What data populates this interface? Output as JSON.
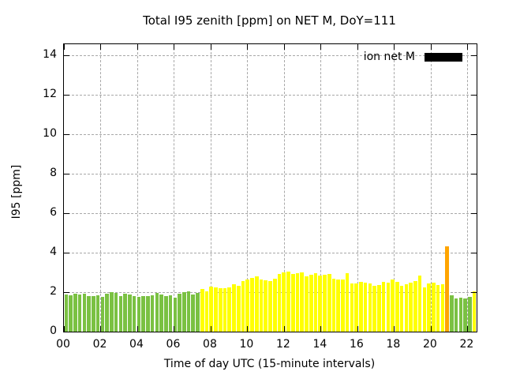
{
  "title": "Total I95 zenith [ppm] on NET M, DoY=111",
  "legend": {
    "label": "ion net M",
    "swatch_color": "#000000"
  },
  "axes": {
    "ylabel": "I95 [ppm]",
    "xlabel": "Time of day UTC (15-minute intervals)",
    "y_ticks": [
      "0",
      "2",
      "4",
      "6",
      "8",
      "10",
      "12",
      "14"
    ],
    "x_ticks": [
      "00",
      "02",
      "04",
      "06",
      "08",
      "10",
      "12",
      "14",
      "16",
      "18",
      "20",
      "22"
    ]
  },
  "colors": {
    "bar_green": "#7ac142",
    "bar_yellow": "#ffff00",
    "bar_orange": "#ffa500",
    "grid": "#a8a8a8",
    "axis": "#000000",
    "background": "#ffffff"
  },
  "chart_data": {
    "type": "bar",
    "title": "Total I95 zenith [ppm] on NET M, DoY=111",
    "xlabel": "Time of day UTC (15-minute intervals)",
    "ylabel": "I95 [ppm]",
    "ylim": [
      0,
      14.5
    ],
    "y_tick_step": 2,
    "x_hours_range": [
      0,
      22.5
    ],
    "x_tick_step_hours": 2,
    "interval_minutes": 15,
    "grid": true,
    "legend": {
      "label": "ion net M",
      "position": "top-right",
      "swatch_color": "#000000"
    },
    "series_colors": {
      "green": "#7ac142",
      "yellow": "#ffff00",
      "orange": "#ffa500"
    },
    "bars": [
      {
        "t": "00:00",
        "v": 1.89,
        "c": "green"
      },
      {
        "t": "00:15",
        "v": 1.85,
        "c": "green"
      },
      {
        "t": "00:30",
        "v": 1.93,
        "c": "green"
      },
      {
        "t": "00:45",
        "v": 1.89,
        "c": "green"
      },
      {
        "t": "01:00",
        "v": 1.93,
        "c": "green"
      },
      {
        "t": "01:15",
        "v": 1.79,
        "c": "green"
      },
      {
        "t": "01:30",
        "v": 1.79,
        "c": "green"
      },
      {
        "t": "01:45",
        "v": 1.83,
        "c": "green"
      },
      {
        "t": "02:00",
        "v": 1.76,
        "c": "green"
      },
      {
        "t": "02:15",
        "v": 1.93,
        "c": "green"
      },
      {
        "t": "02:30",
        "v": 1.99,
        "c": "green"
      },
      {
        "t": "02:45",
        "v": 1.95,
        "c": "green"
      },
      {
        "t": "03:00",
        "v": 1.81,
        "c": "green"
      },
      {
        "t": "03:15",
        "v": 1.93,
        "c": "green"
      },
      {
        "t": "03:30",
        "v": 1.87,
        "c": "green"
      },
      {
        "t": "03:45",
        "v": 1.81,
        "c": "green"
      },
      {
        "t": "04:00",
        "v": 1.76,
        "c": "green"
      },
      {
        "t": "04:15",
        "v": 1.79,
        "c": "green"
      },
      {
        "t": "04:30",
        "v": 1.8,
        "c": "green"
      },
      {
        "t": "04:45",
        "v": 1.85,
        "c": "green"
      },
      {
        "t": "05:00",
        "v": 1.95,
        "c": "green"
      },
      {
        "t": "05:15",
        "v": 1.89,
        "c": "green"
      },
      {
        "t": "05:30",
        "v": 1.81,
        "c": "green"
      },
      {
        "t": "05:45",
        "v": 1.85,
        "c": "green"
      },
      {
        "t": "06:00",
        "v": 1.71,
        "c": "green"
      },
      {
        "t": "06:15",
        "v": 1.93,
        "c": "green"
      },
      {
        "t": "06:30",
        "v": 1.99,
        "c": "green"
      },
      {
        "t": "06:45",
        "v": 2.03,
        "c": "green"
      },
      {
        "t": "07:00",
        "v": 1.89,
        "c": "green"
      },
      {
        "t": "07:15",
        "v": 1.95,
        "c": "green"
      },
      {
        "t": "07:30",
        "v": 2.16,
        "c": "yellow"
      },
      {
        "t": "07:45",
        "v": 2.05,
        "c": "yellow"
      },
      {
        "t": "08:00",
        "v": 2.29,
        "c": "yellow"
      },
      {
        "t": "08:15",
        "v": 2.25,
        "c": "yellow"
      },
      {
        "t": "08:30",
        "v": 2.2,
        "c": "yellow"
      },
      {
        "t": "08:45",
        "v": 2.19,
        "c": "yellow"
      },
      {
        "t": "09:00",
        "v": 2.25,
        "c": "yellow"
      },
      {
        "t": "09:15",
        "v": 2.39,
        "c": "yellow"
      },
      {
        "t": "09:30",
        "v": 2.32,
        "c": "yellow"
      },
      {
        "t": "09:45",
        "v": 2.56,
        "c": "yellow"
      },
      {
        "t": "10:00",
        "v": 2.65,
        "c": "yellow"
      },
      {
        "t": "10:15",
        "v": 2.73,
        "c": "yellow"
      },
      {
        "t": "10:30",
        "v": 2.79,
        "c": "yellow"
      },
      {
        "t": "10:45",
        "v": 2.65,
        "c": "yellow"
      },
      {
        "t": "11:00",
        "v": 2.6,
        "c": "yellow"
      },
      {
        "t": "11:15",
        "v": 2.56,
        "c": "yellow"
      },
      {
        "t": "11:30",
        "v": 2.69,
        "c": "yellow"
      },
      {
        "t": "11:45",
        "v": 2.92,
        "c": "yellow"
      },
      {
        "t": "12:00",
        "v": 3.0,
        "c": "yellow"
      },
      {
        "t": "12:15",
        "v": 3.03,
        "c": "yellow"
      },
      {
        "t": "12:30",
        "v": 2.92,
        "c": "yellow"
      },
      {
        "t": "12:45",
        "v": 2.96,
        "c": "yellow"
      },
      {
        "t": "13:00",
        "v": 2.99,
        "c": "yellow"
      },
      {
        "t": "13:15",
        "v": 2.79,
        "c": "yellow"
      },
      {
        "t": "13:30",
        "v": 2.89,
        "c": "yellow"
      },
      {
        "t": "13:45",
        "v": 2.95,
        "c": "yellow"
      },
      {
        "t": "14:00",
        "v": 2.83,
        "c": "yellow"
      },
      {
        "t": "14:15",
        "v": 2.87,
        "c": "yellow"
      },
      {
        "t": "14:30",
        "v": 2.92,
        "c": "yellow"
      },
      {
        "t": "14:45",
        "v": 2.69,
        "c": "yellow"
      },
      {
        "t": "15:00",
        "v": 2.65,
        "c": "yellow"
      },
      {
        "t": "15:15",
        "v": 2.63,
        "c": "yellow"
      },
      {
        "t": "15:30",
        "v": 2.96,
        "c": "yellow"
      },
      {
        "t": "15:45",
        "v": 2.43,
        "c": "yellow"
      },
      {
        "t": "16:00",
        "v": 2.43,
        "c": "yellow"
      },
      {
        "t": "16:15",
        "v": 2.52,
        "c": "yellow"
      },
      {
        "t": "16:30",
        "v": 2.47,
        "c": "yellow"
      },
      {
        "t": "16:45",
        "v": 2.43,
        "c": "yellow"
      },
      {
        "t": "17:00",
        "v": 2.33,
        "c": "yellow"
      },
      {
        "t": "17:15",
        "v": 2.36,
        "c": "yellow"
      },
      {
        "t": "17:30",
        "v": 2.52,
        "c": "yellow"
      },
      {
        "t": "17:45",
        "v": 2.49,
        "c": "yellow"
      },
      {
        "t": "18:00",
        "v": 2.65,
        "c": "yellow"
      },
      {
        "t": "18:15",
        "v": 2.52,
        "c": "yellow"
      },
      {
        "t": "18:30",
        "v": 2.33,
        "c": "yellow"
      },
      {
        "t": "18:45",
        "v": 2.39,
        "c": "yellow"
      },
      {
        "t": "19:00",
        "v": 2.49,
        "c": "yellow"
      },
      {
        "t": "19:15",
        "v": 2.56,
        "c": "yellow"
      },
      {
        "t": "19:30",
        "v": 2.83,
        "c": "yellow"
      },
      {
        "t": "19:45",
        "v": 2.25,
        "c": "yellow"
      },
      {
        "t": "20:00",
        "v": 2.43,
        "c": "yellow"
      },
      {
        "t": "20:15",
        "v": 2.49,
        "c": "yellow"
      },
      {
        "t": "20:30",
        "v": 2.36,
        "c": "yellow"
      },
      {
        "t": "20:45",
        "v": 2.39,
        "c": "yellow"
      },
      {
        "t": "21:00",
        "v": 4.32,
        "c": "orange"
      },
      {
        "t": "21:15",
        "v": 1.85,
        "c": "green"
      },
      {
        "t": "21:30",
        "v": 1.69,
        "c": "green"
      },
      {
        "t": "21:45",
        "v": 1.72,
        "c": "green"
      },
      {
        "t": "22:00",
        "v": 1.67,
        "c": "green"
      },
      {
        "t": "22:15",
        "v": 1.76,
        "c": "green"
      },
      {
        "t": "22:30",
        "v": 2.05,
        "c": "yellow"
      }
    ]
  }
}
